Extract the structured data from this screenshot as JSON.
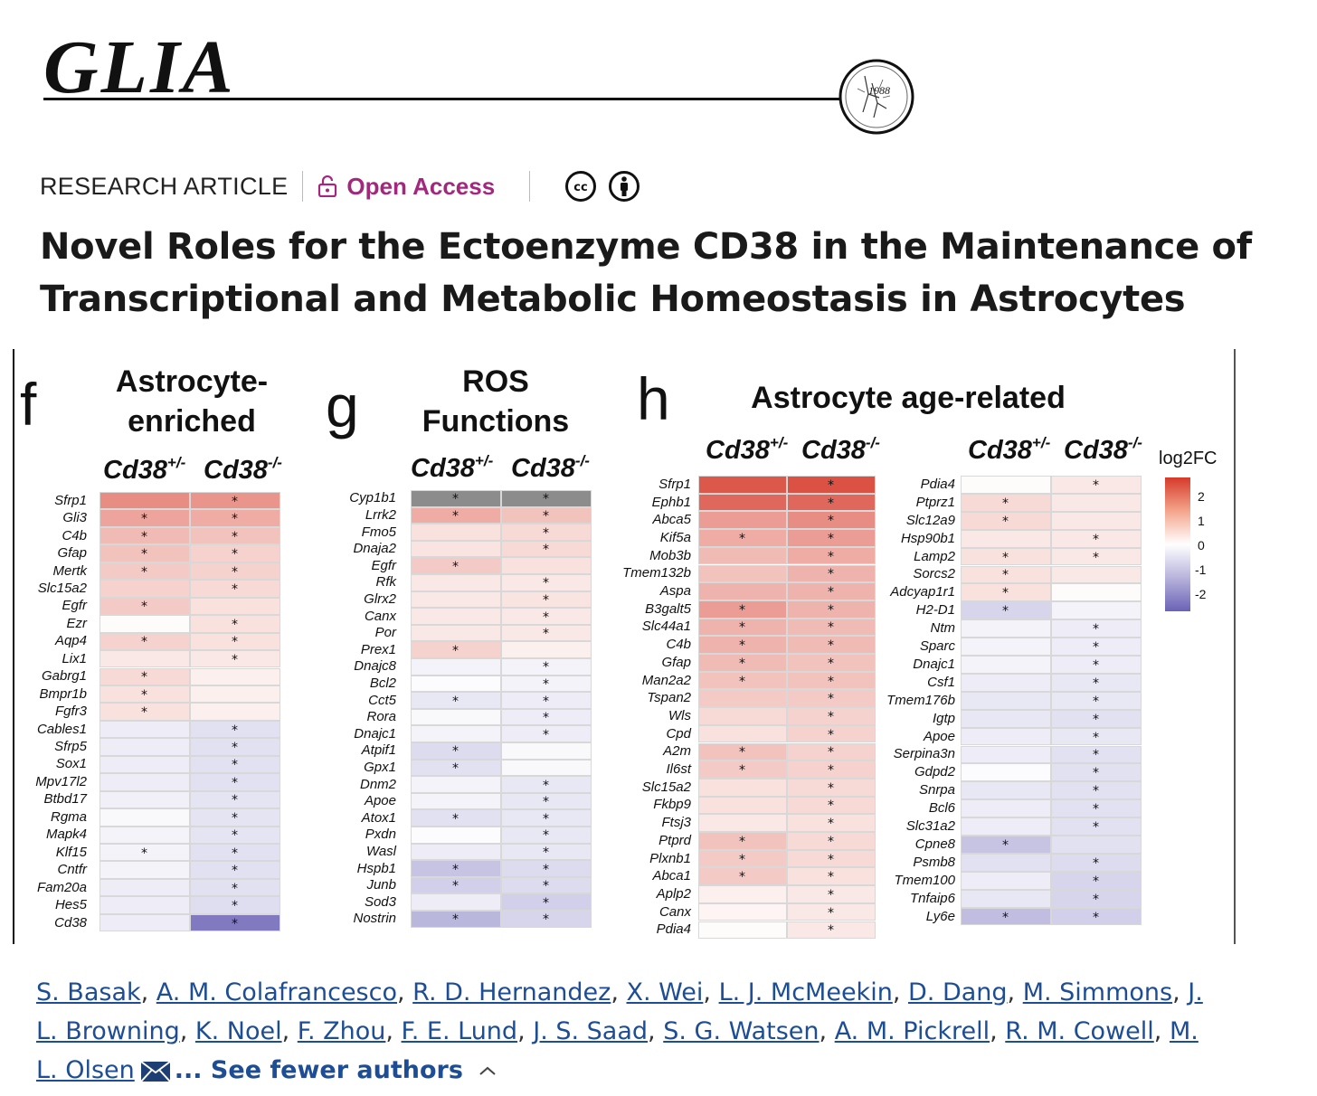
{
  "journal": {
    "name": "GLIA",
    "seal_year": "1988"
  },
  "meta": {
    "article_type": "RESEARCH ARTICLE",
    "access": "Open Access",
    "license_icons": [
      "cc-icon",
      "attribution-icon"
    ]
  },
  "title": "Novel Roles for the Ectoenzyme CD38 in the Maintenance of Transcriptional and Metabolic Homeostasis in Astrocytes",
  "figure": {
    "column_labels": {
      "het_base": "Cd38",
      "het_sup": "+/-",
      "ko_base": "Cd38",
      "ko_sup": "-/-"
    },
    "legend": {
      "title": "log2FC",
      "ticks": [
        "2",
        "1",
        "0",
        "-1",
        "-2"
      ],
      "range": [
        -2.6,
        2.6
      ],
      "colors": {
        "high": "#d63a2a",
        "mid": "#ffffff",
        "low": "#6a62b6",
        "missing": "#8c8c8c"
      }
    },
    "panels": [
      {
        "letter": "f",
        "title_lines": [
          "Astrocyte-",
          "enriched"
        ],
        "genes": [
          "Sfrp1",
          "Gli3",
          "C4b",
          "Gfap",
          "Mertk",
          "Slc15a2",
          "Egfr",
          "Ezr",
          "Aqp4",
          "Lix1",
          "Gabrg1",
          "Bmpr1b",
          "Fgfr3",
          "Cables1",
          "Sfrp5",
          "Sox1",
          "Mpv17l2",
          "Btbd17",
          "Rgma",
          "Mapk4",
          "Klf15",
          "Cntfr",
          "Fam20a",
          "Hes5",
          "Cd38"
        ],
        "het": [
          1.5,
          1.2,
          0.9,
          0.8,
          0.7,
          0.6,
          0.7,
          0.05,
          0.6,
          0.3,
          0.5,
          0.4,
          0.4,
          -0.3,
          -0.3,
          -0.3,
          -0.3,
          -0.25,
          -0.1,
          -0.2,
          -0.2,
          -0.2,
          -0.3,
          -0.3,
          -0.3
        ],
        "ko": [
          1.4,
          1.1,
          0.8,
          0.6,
          0.6,
          0.5,
          0.4,
          0.4,
          0.4,
          0.3,
          0.2,
          0.2,
          0.2,
          -0.5,
          -0.5,
          -0.5,
          -0.5,
          -0.45,
          -0.45,
          -0.45,
          -0.5,
          -0.5,
          -0.5,
          -0.55,
          -2.2
        ],
        "het_sig": [
          0,
          1,
          1,
          1,
          1,
          0,
          1,
          0,
          1,
          0,
          1,
          1,
          1,
          0,
          0,
          0,
          0,
          0,
          0,
          0,
          1,
          0,
          0,
          0,
          0
        ],
        "ko_sig": [
          1,
          1,
          1,
          1,
          1,
          1,
          0,
          1,
          1,
          1,
          0,
          0,
          0,
          1,
          1,
          1,
          1,
          1,
          1,
          1,
          1,
          1,
          1,
          1,
          1
        ]
      },
      {
        "letter": "g",
        "title_lines": [
          "ROS",
          "Functions"
        ],
        "genes": [
          "Cyp1b1",
          "Lrrk2",
          "Fmo5",
          "Dnaja2",
          "Egfr",
          "Rfk",
          "Glrx2",
          "Canx",
          "Por",
          "Prex1",
          "Dnajc8",
          "Bcl2",
          "Cct5",
          "Rora",
          "Dnajc1",
          "Atpif1",
          "Gpx1",
          "Dnm2",
          "Apoe",
          "Atox1",
          "Pxdn",
          "Wasl",
          "Hspb1",
          "Junb",
          "Sod3",
          "Nostrin"
        ],
        "het": [
          null,
          1.1,
          0.4,
          0.35,
          0.7,
          0.3,
          0.3,
          0.3,
          0.3,
          0.6,
          -0.2,
          -0.05,
          -0.4,
          -0.1,
          -0.2,
          -0.6,
          -0.5,
          -0.2,
          -0.2,
          -0.5,
          -0.05,
          -0.3,
          -1.0,
          -0.8,
          -0.3,
          -1.2
        ],
        "ko": [
          null,
          0.8,
          0.5,
          0.5,
          0.4,
          0.3,
          0.35,
          0.3,
          0.3,
          0.2,
          -0.2,
          -0.2,
          -0.3,
          -0.3,
          -0.3,
          -0.1,
          -0.1,
          -0.4,
          -0.4,
          -0.4,
          -0.4,
          -0.4,
          -0.6,
          -0.6,
          -0.8,
          -0.7
        ],
        "het_sig": [
          1,
          1,
          0,
          0,
          1,
          0,
          0,
          0,
          0,
          1,
          0,
          0,
          1,
          0,
          0,
          1,
          1,
          0,
          0,
          1,
          0,
          0,
          1,
          1,
          0,
          1
        ],
        "ko_sig": [
          1,
          1,
          1,
          1,
          0,
          1,
          1,
          1,
          1,
          0,
          1,
          1,
          1,
          1,
          1,
          0,
          0,
          1,
          1,
          1,
          1,
          1,
          1,
          1,
          1,
          1
        ]
      },
      {
        "letter": "h",
        "title_lines": [
          "Astrocyte age-related"
        ],
        "left": {
          "genes": [
            "Sfrp1",
            "Ephb1",
            "Abca5",
            "Kif5a",
            "Mob3b",
            "Tmem132b",
            "Aspa",
            "B3galt5",
            "Slc44a1",
            "C4b",
            "Gfap",
            "Man2a2",
            "Tspan2",
            "Wls",
            "Cpd",
            "A2m",
            "Il6st",
            "Slc15a2",
            "Fkbp9",
            "Ftsj3",
            "Ptprd",
            "Plxnb1",
            "Abca1",
            "Aplp2",
            "Canx",
            "Pdia4"
          ],
          "het": [
            2.2,
            2.0,
            1.3,
            1.1,
            0.9,
            0.8,
            1.0,
            1.3,
            1.0,
            1.0,
            0.9,
            0.8,
            0.7,
            0.5,
            0.4,
            0.8,
            0.7,
            0.4,
            0.4,
            0.3,
            0.8,
            0.7,
            0.7,
            0.2,
            0.15,
            0.05
          ],
          "ko": [
            2.3,
            2.0,
            1.5,
            1.3,
            1.1,
            1.0,
            1.0,
            1.0,
            0.9,
            0.9,
            0.8,
            0.8,
            0.7,
            0.6,
            0.6,
            0.6,
            0.6,
            0.5,
            0.5,
            0.4,
            0.5,
            0.5,
            0.4,
            0.3,
            0.3,
            0.3
          ],
          "het_sig": [
            0,
            0,
            0,
            1,
            0,
            0,
            0,
            1,
            1,
            1,
            1,
            1,
            0,
            0,
            0,
            1,
            1,
            0,
            0,
            0,
            1,
            1,
            1,
            0,
            0,
            0
          ],
          "ko_sig": [
            1,
            1,
            1,
            1,
            1,
            1,
            1,
            1,
            1,
            1,
            1,
            1,
            1,
            1,
            1,
            1,
            1,
            1,
            1,
            1,
            1,
            1,
            1,
            1,
            1,
            1
          ]
        },
        "right": {
          "genes": [
            "Pdia4",
            "Ptprz1",
            "Slc12a9",
            "Hsp90b1",
            "Lamp2",
            "Sorcs2",
            "Adcyap1r1",
            "H2-D1",
            "Ntm",
            "Sparc",
            "Dnajc1",
            "Csf1",
            "Tmem176b",
            "Igtp",
            "Apoe",
            "Serpina3n",
            "Gdpd2",
            "Snrpa",
            "Bcl6",
            "Slc31a2",
            "Cpne8",
            "Psmb8",
            "Tmem100",
            "Tnfaip6",
            "Ly6e"
          ],
          "het": [
            0.05,
            0.5,
            0.5,
            0.3,
            0.4,
            0.4,
            0.4,
            -0.7,
            -0.2,
            -0.2,
            -0.2,
            -0.3,
            -0.4,
            -0.4,
            -0.3,
            -0.3,
            -0.05,
            -0.4,
            -0.3,
            -0.3,
            -1.0,
            -0.5,
            -0.3,
            -0.4,
            -1.1
          ],
          "ko": [
            0.3,
            0.3,
            0.3,
            0.3,
            0.3,
            0.3,
            0.05,
            -0.2,
            -0.3,
            -0.3,
            -0.3,
            -0.4,
            -0.4,
            -0.5,
            -0.4,
            -0.5,
            -0.5,
            -0.5,
            -0.5,
            -0.5,
            -0.5,
            -0.6,
            -0.7,
            -0.7,
            -0.8
          ],
          "het_sig": [
            0,
            1,
            1,
            0,
            1,
            1,
            1,
            1,
            0,
            0,
            0,
            0,
            0,
            0,
            0,
            0,
            0,
            0,
            0,
            0,
            1,
            0,
            0,
            0,
            1
          ],
          "ko_sig": [
            1,
            0,
            0,
            1,
            1,
            0,
            0,
            0,
            1,
            1,
            1,
            1,
            1,
            1,
            1,
            1,
            1,
            1,
            1,
            1,
            0,
            1,
            1,
            1,
            1
          ]
        }
      }
    ]
  },
  "authors": [
    "S. Basak",
    "A. M. Colafrancesco",
    "R. D. Hernandez",
    "X. Wei",
    "L. J. McMeekin",
    "D. Dang",
    "M. Simmons",
    "J. L. Browning",
    "K. Noel",
    "F. Zhou",
    "F. E. Lund",
    "J. S. Saad",
    "S. G. Watsen",
    "A. M. Pickrell",
    "R. M. Cowell",
    "M. L. Olsen"
  ],
  "see_fewer": "... See fewer authors",
  "colors": {
    "access": "#a3287d",
    "link": "#1d4d94"
  }
}
